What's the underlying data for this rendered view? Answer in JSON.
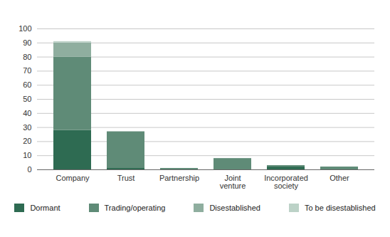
{
  "chart_data": {
    "type": "bar",
    "stacked": true,
    "categories": [
      "Company",
      "Trust",
      "Partnership",
      "Joint venture",
      "Incorporated society",
      "Other"
    ],
    "series": [
      {
        "name": "Dormant",
        "color": "#2e6b52",
        "values": [
          28,
          1,
          0,
          0,
          2,
          0
        ]
      },
      {
        "name": "Trading/operating",
        "color": "#5f8b77",
        "values": [
          52,
          26,
          1,
          8,
          1,
          2
        ]
      },
      {
        "name": "Disestablished",
        "color": "#8fae9f",
        "values": [
          10,
          0,
          0,
          0,
          0,
          0
        ]
      },
      {
        "name": "To be disestablished",
        "color": "#bcd2c7",
        "values": [
          1,
          0,
          0,
          0,
          0,
          0
        ]
      }
    ],
    "ylim": [
      0,
      100
    ],
    "yticks": [
      0,
      10,
      20,
      30,
      40,
      50,
      60,
      70,
      80,
      90,
      100
    ],
    "grid": true,
    "legend": "bottom"
  }
}
